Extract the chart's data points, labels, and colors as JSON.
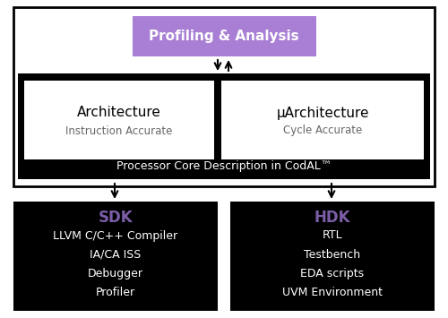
{
  "bg_color": "#ffffff",
  "outer_box_edge": "#000000",
  "profiling_box_color": "#a87fd4",
  "profiling_box_text": "Profiling & Analysis",
  "profiling_text_color": "#ffffff",
  "core_box_color": "#000000",
  "arch_box_color": "#ffffff",
  "arch_title": "Architecture",
  "arch_subtitle": "Instruction Accurate",
  "arch_title_color": "#000000",
  "arch_subtitle_color": "#666666",
  "uarch_title": "μArchitecture",
  "uarch_subtitle": "Cycle Accurate",
  "core_label": "Processor Core Description in CodAL™",
  "core_label_color": "#ffffff",
  "sdk_box_color": "#000000",
  "hdk_box_color": "#000000",
  "sdk_label": "SDK",
  "sdk_label_color": "#7b5ea7",
  "sdk_items": [
    "LLVM C/C++ Compiler",
    "IA/CA ISS",
    "Debugger",
    "Profiler"
  ],
  "sdk_items_color": "#ffffff",
  "hdk_label": "HDK",
  "hdk_label_color": "#7b5ea7",
  "hdk_items": [
    "RTL",
    "Testbench",
    "EDA scripts",
    "UVM Environment"
  ],
  "hdk_items_color": "#ffffff",
  "arrow_color": "#000000",
  "figw": 5.0,
  "figh": 3.55,
  "dpi": 100
}
